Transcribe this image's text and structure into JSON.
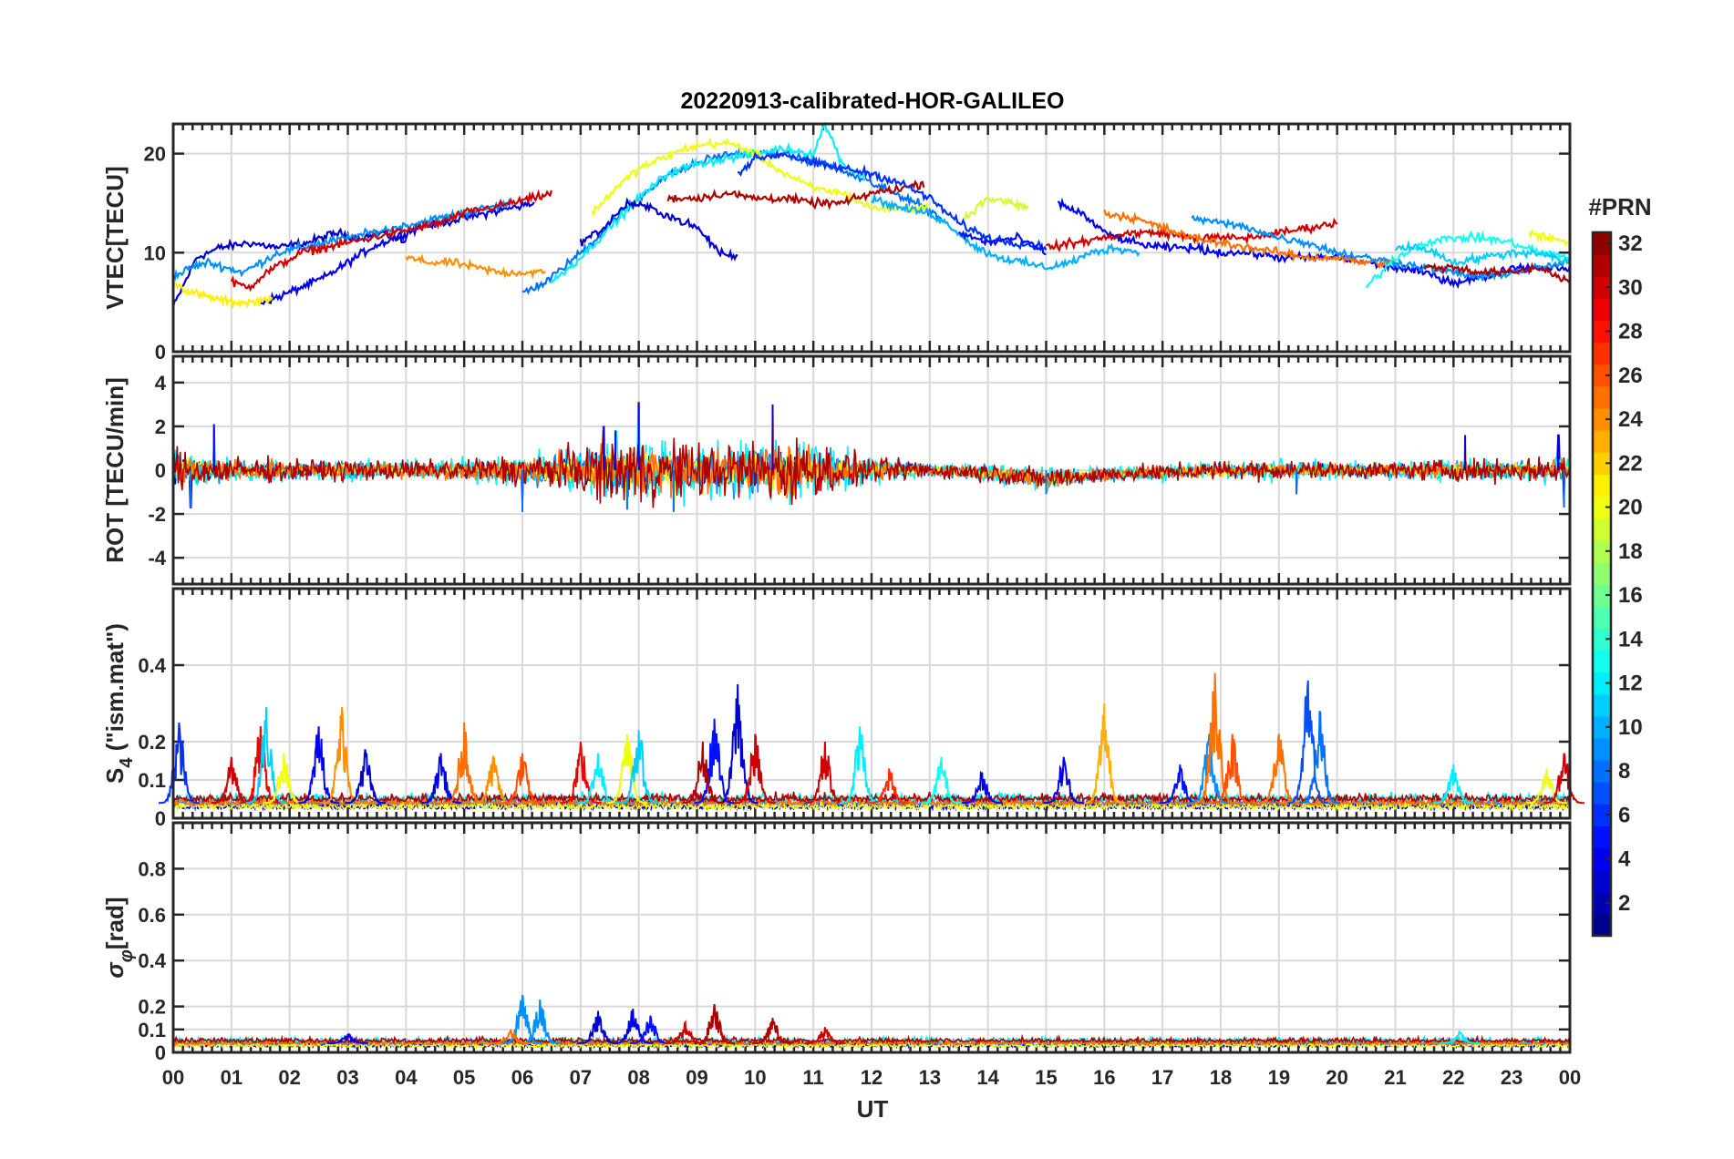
{
  "chart_data": [
    {
      "type": "line",
      "panel": "vtec",
      "title": "20220913-calibrated-HOR-GALILEO",
      "ylabel": "VTEC[TECU]",
      "xlabel": "",
      "ylim": [
        0,
        23
      ],
      "yticks": [
        0,
        10,
        20
      ],
      "grid": true,
      "series": [
        {
          "prn": 3,
          "x": [
            0.0,
            0.4,
            0.8,
            1.3,
            1.8,
            2.3,
            2.8,
            3.2,
            3.6,
            4.0
          ],
          "y": [
            4.5,
            9.5,
            10.5,
            11.0,
            10.5,
            11.0,
            12.0,
            11.5,
            12.0,
            11.0
          ]
        },
        {
          "prn": 4,
          "x": [
            1.5,
            1.8,
            2.2,
            2.6,
            3.0,
            3.4,
            3.8,
            4.2,
            4.6,
            5.0,
            5.4,
            5.8,
            6.2
          ],
          "y": [
            5.0,
            5.5,
            6.5,
            7.5,
            9.0,
            10.5,
            11.5,
            12.5,
            13.0,
            13.5,
            14.0,
            14.5,
            15.0
          ]
        },
        {
          "prn": 9,
          "x": [
            0.0,
            0.3,
            0.6,
            0.9,
            1.2,
            1.5,
            1.8,
            2.2,
            2.6,
            3.0,
            3.4,
            3.8,
            4.2,
            4.6,
            5.0,
            5.4,
            5.8
          ],
          "y": [
            7.5,
            8.5,
            9.0,
            8.5,
            8.0,
            9.0,
            10.0,
            10.5,
            11.0,
            11.5,
            12.0,
            12.5,
            13.0,
            13.5,
            14.0,
            14.5,
            15.0
          ]
        },
        {
          "prn": 21,
          "x": [
            0.0,
            0.3,
            0.6,
            1.0,
            1.4,
            1.7
          ],
          "y": [
            7.0,
            6.0,
            5.5,
            5.0,
            5.0,
            5.5
          ]
        },
        {
          "prn": 30,
          "x": [
            1.0,
            1.3,
            1.6,
            1.9,
            2.2,
            2.6,
            3.0,
            3.4,
            3.8,
            4.2,
            4.6,
            5.0,
            5.4,
            5.8,
            6.2,
            6.5
          ],
          "y": [
            7.0,
            6.5,
            8.0,
            9.0,
            10.0,
            10.5,
            11.0,
            11.5,
            12.0,
            12.5,
            13.0,
            14.0,
            14.5,
            15.0,
            15.5,
            16.0
          ]
        },
        {
          "prn": 24,
          "x": [
            4.0,
            4.4,
            4.8,
            5.2,
            5.6,
            6.0,
            6.4
          ],
          "y": [
            9.5,
            9.0,
            9.0,
            8.5,
            8.0,
            8.0,
            8.0
          ]
        },
        {
          "prn": 8,
          "x": [
            6.0,
            6.4,
            6.8,
            7.2,
            7.6,
            8.0,
            8.4,
            8.8,
            9.2,
            9.6,
            10.0,
            10.4,
            10.8,
            11.2,
            11.6,
            12.0,
            12.4,
            12.8,
            13.2
          ],
          "y": [
            6.0,
            7.0,
            9.0,
            11.0,
            13.5,
            15.5,
            17.5,
            18.5,
            19.5,
            20.0,
            20.0,
            20.0,
            19.5,
            19.0,
            18.0,
            17.0,
            16.0,
            15.0,
            13.5
          ]
        },
        {
          "prn": 12,
          "x": [
            6.5,
            7.0,
            7.5,
            8.0,
            8.5,
            9.0,
            9.5,
            10.0,
            10.5,
            11.0,
            11.2,
            11.5,
            11.9
          ],
          "y": [
            7.0,
            9.5,
            12.5,
            15.5,
            18.0,
            19.0,
            19.5,
            20.0,
            20.5,
            20.0,
            23.0,
            19.0,
            17.5
          ]
        },
        {
          "prn": 20,
          "x": [
            7.2,
            7.6,
            8.0,
            8.4,
            8.8,
            9.2,
            9.6,
            10.0,
            10.5,
            11.0,
            11.5,
            12.0,
            12.5,
            13.0
          ],
          "y": [
            14.0,
            16.5,
            18.5,
            19.5,
            20.5,
            21.0,
            21.0,
            20.0,
            18.0,
            16.5,
            16.0,
            14.5,
            14.5,
            14.5
          ]
        },
        {
          "prn": 3,
          "x": [
            7.0,
            7.4,
            7.8,
            8.2,
            8.6,
            9.0,
            9.4,
            9.7
          ],
          "y": [
            11.0,
            12.5,
            15.0,
            14.5,
            13.5,
            12.5,
            10.0,
            9.5
          ]
        },
        {
          "prn": 31,
          "x": [
            8.5,
            9.0,
            9.5,
            10.0,
            10.5,
            11.0,
            11.5,
            12.0,
            12.5,
            12.9
          ],
          "y": [
            15.5,
            15.5,
            16.0,
            15.5,
            15.5,
            15.0,
            15.0,
            16.0,
            16.5,
            17.0
          ]
        },
        {
          "prn": 6,
          "x": [
            9.7,
            10.0,
            10.5,
            11.0,
            11.5,
            12.0,
            12.5,
            13.0,
            13.5,
            14.0,
            14.5,
            15.0
          ],
          "y": [
            18.0,
            19.5,
            20.0,
            19.0,
            18.5,
            18.0,
            17.0,
            15.5,
            13.0,
            11.5,
            11.0,
            10.5
          ]
        },
        {
          "prn": 10,
          "x": [
            12.0,
            12.5,
            13.0,
            13.4,
            13.8,
            14.2,
            14.6,
            15.0,
            15.4,
            15.8,
            16.2,
            16.6
          ],
          "y": [
            15.5,
            14.5,
            14.0,
            12.5,
            10.5,
            9.5,
            9.0,
            8.5,
            9.0,
            10.0,
            10.5,
            10.0
          ]
        },
        {
          "prn": 19,
          "x": [
            13.6,
            14.0,
            14.4,
            14.7
          ],
          "y": [
            13.5,
            15.5,
            15.0,
            14.5
          ]
        },
        {
          "prn": 5,
          "x": [
            13.5,
            14.0,
            14.5,
            15.0
          ],
          "y": [
            12.0,
            11.0,
            11.5,
            10.0
          ]
        },
        {
          "prn": 4,
          "x": [
            15.2,
            15.6,
            16.0,
            16.5,
            17.0,
            17.5,
            18.0,
            18.5,
            19.0,
            19.5,
            20.0,
            20.5,
            21.0,
            21.5,
            22.0,
            22.5,
            23.0,
            23.5,
            24.0
          ],
          "y": [
            15.0,
            14.0,
            12.0,
            11.0,
            10.5,
            10.5,
            10.0,
            10.0,
            9.5,
            9.5,
            9.5,
            9.0,
            8.5,
            8.0,
            7.0,
            7.5,
            8.5,
            8.5,
            8.5
          ]
        },
        {
          "prn": 30,
          "x": [
            15.0,
            15.5,
            16.0,
            16.5,
            17.0,
            17.5,
            18.0,
            18.5,
            19.0,
            19.5,
            20.0
          ],
          "y": [
            10.5,
            11.0,
            11.5,
            12.0,
            12.0,
            11.5,
            11.5,
            11.5,
            12.0,
            12.5,
            13.0
          ]
        },
        {
          "prn": 25,
          "x": [
            16.0,
            16.5,
            17.0,
            17.5,
            18.0,
            18.5,
            19.0,
            19.5,
            20.0,
            20.5,
            21.0
          ],
          "y": [
            14.0,
            13.5,
            12.5,
            11.5,
            11.0,
            10.5,
            10.0,
            9.5,
            9.5,
            9.0,
            9.0
          ]
        },
        {
          "prn": 9,
          "x": [
            17.5,
            18.0,
            18.5,
            19.0,
            19.5,
            20.0,
            20.5,
            21.0,
            21.5,
            22.0,
            22.5,
            23.0,
            23.5,
            24.0
          ],
          "y": [
            13.5,
            13.0,
            12.5,
            11.5,
            11.0,
            10.0,
            9.5,
            9.0,
            8.5,
            8.0,
            7.5,
            8.0,
            8.5,
            9.0
          ]
        },
        {
          "prn": 13,
          "x": [
            20.5,
            21.0,
            21.5,
            22.0,
            22.5,
            23.0,
            23.5,
            24.0
          ],
          "y": [
            6.5,
            9.5,
            11.0,
            11.5,
            11.5,
            11.0,
            10.0,
            9.5
          ]
        },
        {
          "prn": 20,
          "x": [
            23.3,
            23.6,
            24.0
          ],
          "y": [
            12.0,
            11.5,
            11.0
          ]
        },
        {
          "prn": 11,
          "x": [
            21.0,
            21.5,
            22.0,
            22.5,
            23.0,
            23.5,
            24.0
          ],
          "y": [
            10.5,
            10.5,
            9.0,
            9.5,
            10.0,
            10.0,
            9.0
          ]
        },
        {
          "prn": 31,
          "x": [
            21.5,
            22.0,
            22.5,
            23.0,
            23.5,
            24.0
          ],
          "y": [
            8.5,
            8.5,
            8.0,
            8.0,
            8.5,
            7.0
          ]
        }
      ]
    },
    {
      "type": "line",
      "panel": "rot",
      "ylabel": "ROT [TECU/min]",
      "ylim": [
        -5.2,
        5.2
      ],
      "yticks": [
        -4,
        -2,
        0,
        2,
        4
      ],
      "grid": true,
      "x_range": [
        0,
        24
      ],
      "noise_profile": {
        "x": [
          0,
          0.5,
          1,
          2,
          3,
          4,
          5,
          6,
          7,
          7.5,
          8,
          9,
          10,
          10.5,
          11,
          12,
          13,
          14,
          15,
          16,
          17,
          18,
          19,
          20,
          21,
          22,
          23,
          24
        ],
        "amp": [
          0.9,
          0.6,
          0.5,
          0.4,
          0.4,
          0.35,
          0.45,
          0.6,
          0.9,
          1.2,
          1.3,
          1.0,
          1.1,
          1.3,
          1.0,
          0.5,
          0.3,
          0.35,
          0.4,
          0.3,
          0.3,
          0.35,
          0.35,
          0.35,
          0.3,
          0.45,
          0.4,
          0.5
        ],
        "bias": [
          0,
          0,
          0,
          0,
          0,
          0,
          0,
          0,
          0,
          0,
          0,
          0,
          0,
          0,
          0,
          0,
          0,
          -0.1,
          -0.4,
          -0.2,
          -0.1,
          0,
          0,
          0,
          0,
          0,
          0,
          0
        ]
      },
      "spikes": [
        {
          "x": 0.7,
          "y": 2.1
        },
        {
          "x": 0.3,
          "y": -1.7
        },
        {
          "x": 6.0,
          "y": -1.9
        },
        {
          "x": 7.4,
          "y": 2.0
        },
        {
          "x": 7.6,
          "y": 1.8
        },
        {
          "x": 8.0,
          "y": 3.1
        },
        {
          "x": 7.8,
          "y": -1.8
        },
        {
          "x": 8.6,
          "y": -1.9
        },
        {
          "x": 10.3,
          "y": 3.0
        },
        {
          "x": 15.0,
          "y": -1.1
        },
        {
          "x": 19.3,
          "y": -1.1
        },
        {
          "x": 23.9,
          "y": -1.7
        },
        {
          "x": 23.8,
          "y": 1.6
        },
        {
          "x": 22.2,
          "y": 1.6
        }
      ],
      "series_prns": [
        2,
        9,
        12,
        20,
        25,
        31
      ]
    },
    {
      "type": "line",
      "panel": "s4",
      "ylabel": "S4 (\"ism.mat\")",
      "ylabel_main": "S",
      "ylabel_sub": "4",
      "ylabel_rest": " (\"ism.mat\")",
      "ylim": [
        0,
        0.6
      ],
      "yticks": [
        0,
        0.1,
        0.2,
        0.4
      ],
      "grid": true,
      "baseline": 0.04,
      "bursts": [
        {
          "x": 0.1,
          "y": 0.25,
          "prn": 6
        },
        {
          "x": 1.0,
          "y": 0.16,
          "prn": 30
        },
        {
          "x": 1.5,
          "y": 0.24,
          "prn": 29
        },
        {
          "x": 1.6,
          "y": 0.29,
          "prn": 11
        },
        {
          "x": 1.9,
          "y": 0.17,
          "prn": 20
        },
        {
          "x": 2.5,
          "y": 0.24,
          "prn": 4
        },
        {
          "x": 2.9,
          "y": 0.29,
          "prn": 24
        },
        {
          "x": 3.3,
          "y": 0.18,
          "prn": 3
        },
        {
          "x": 4.6,
          "y": 0.17,
          "prn": 4
        },
        {
          "x": 5.0,
          "y": 0.25,
          "prn": 25
        },
        {
          "x": 5.5,
          "y": 0.16,
          "prn": 24
        },
        {
          "x": 6.0,
          "y": 0.17,
          "prn": 26
        },
        {
          "x": 7.0,
          "y": 0.2,
          "prn": 29
        },
        {
          "x": 7.3,
          "y": 0.17,
          "prn": 12
        },
        {
          "x": 7.8,
          "y": 0.22,
          "prn": 20
        },
        {
          "x": 8.0,
          "y": 0.23,
          "prn": 11
        },
        {
          "x": 9.3,
          "y": 0.26,
          "prn": 5
        },
        {
          "x": 9.7,
          "y": 0.35,
          "prn": 3
        },
        {
          "x": 9.1,
          "y": 0.2,
          "prn": 31
        },
        {
          "x": 10.0,
          "y": 0.22,
          "prn": 30
        },
        {
          "x": 11.2,
          "y": 0.2,
          "prn": 30
        },
        {
          "x": 11.8,
          "y": 0.24,
          "prn": 12
        },
        {
          "x": 12.3,
          "y": 0.13,
          "prn": 27
        },
        {
          "x": 13.2,
          "y": 0.16,
          "prn": 13
        },
        {
          "x": 13.9,
          "y": 0.12,
          "prn": 4
        },
        {
          "x": 15.3,
          "y": 0.16,
          "prn": 4
        },
        {
          "x": 16.0,
          "y": 0.3,
          "prn": 23
        },
        {
          "x": 17.3,
          "y": 0.14,
          "prn": 5
        },
        {
          "x": 17.8,
          "y": 0.22,
          "prn": 9
        },
        {
          "x": 17.9,
          "y": 0.38,
          "prn": 25
        },
        {
          "x": 18.2,
          "y": 0.22,
          "prn": 26
        },
        {
          "x": 19.0,
          "y": 0.22,
          "prn": 25
        },
        {
          "x": 19.5,
          "y": 0.36,
          "prn": 7
        },
        {
          "x": 19.7,
          "y": 0.28,
          "prn": 8
        },
        {
          "x": 22.0,
          "y": 0.14,
          "prn": 12
        },
        {
          "x": 23.6,
          "y": 0.13,
          "prn": 20
        },
        {
          "x": 23.9,
          "y": 0.17,
          "prn": 30
        }
      ],
      "series_prns": [
        3,
        9,
        12,
        20,
        25,
        31
      ]
    },
    {
      "type": "line",
      "panel": "sigma_phi",
      "ylabel": "σφ[rad]",
      "ylabel_main": "σ",
      "ylabel_sub": "φ",
      "ylabel_rest": "[rad]",
      "ylim": [
        0,
        1.0
      ],
      "yticks": [
        0,
        0.1,
        0.2,
        0.4,
        0.6,
        0.8
      ],
      "grid": true,
      "baseline": 0.04,
      "bursts": [
        {
          "x": 6.0,
          "y": 0.25,
          "prn": 9
        },
        {
          "x": 6.3,
          "y": 0.23,
          "prn": 9
        },
        {
          "x": 7.3,
          "y": 0.18,
          "prn": 3
        },
        {
          "x": 7.9,
          "y": 0.19,
          "prn": 4
        },
        {
          "x": 8.2,
          "y": 0.16,
          "prn": 5
        },
        {
          "x": 9.3,
          "y": 0.21,
          "prn": 31
        },
        {
          "x": 8.8,
          "y": 0.13,
          "prn": 30
        },
        {
          "x": 10.3,
          "y": 0.15,
          "prn": 31
        },
        {
          "x": 11.2,
          "y": 0.11,
          "prn": 30
        },
        {
          "x": 3.0,
          "y": 0.08,
          "prn": 4
        },
        {
          "x": 5.8,
          "y": 0.1,
          "prn": 25
        },
        {
          "x": 22.1,
          "y": 0.09,
          "prn": 12
        }
      ],
      "series_prns": [
        3,
        9,
        12,
        20,
        25,
        31
      ]
    }
  ],
  "x_axis": {
    "xlabel": "UT",
    "xlim": [
      0,
      24
    ],
    "tick_labels": [
      "00",
      "01",
      "02",
      "03",
      "04",
      "05",
      "06",
      "07",
      "08",
      "09",
      "10",
      "11",
      "12",
      "13",
      "14",
      "15",
      "16",
      "17",
      "18",
      "19",
      "20",
      "21",
      "22",
      "23",
      "00"
    ]
  },
  "colorbar": {
    "title": "#PRN",
    "range": [
      1,
      32
    ],
    "tick_labels": [
      "2",
      "4",
      "6",
      "8",
      "10",
      "12",
      "14",
      "16",
      "18",
      "20",
      "22",
      "24",
      "26",
      "28",
      "30",
      "32"
    ],
    "tick_values": [
      2,
      4,
      6,
      8,
      10,
      12,
      14,
      16,
      18,
      20,
      22,
      24,
      26,
      28,
      30,
      32
    ],
    "colormap": "jet"
  }
}
